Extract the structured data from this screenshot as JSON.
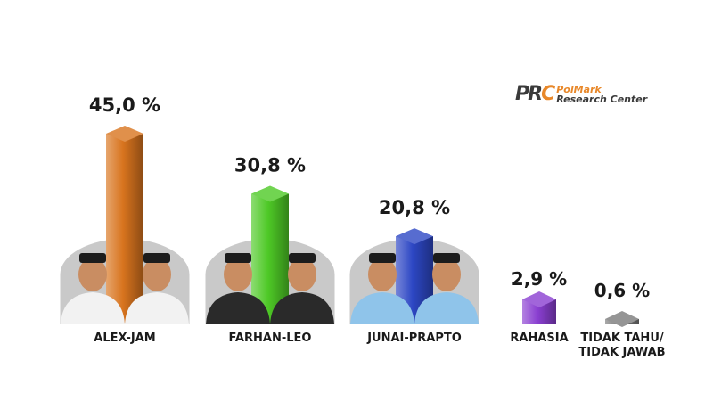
{
  "logo": {
    "mark_part1": "PR",
    "mark_part2": "C",
    "line1": "PolMark",
    "line2": "Research Center"
  },
  "chart_data": {
    "type": "bar",
    "title": "",
    "xlabel": "",
    "ylabel": "",
    "ylim": [
      0,
      45
    ],
    "grid": false,
    "categories": [
      "ALEX-JAM",
      "FARHAN-LEO",
      "JUNAI-PRAPTO",
      "RAHASIA",
      "TIDAK TAHU/\nTIDAK JAWAB"
    ],
    "values": [
      45.0,
      30.8,
      20.8,
      2.9,
      0.6
    ],
    "labels": [
      "45,0 %",
      "30,8 %",
      "20,8 %",
      "2,9 %",
      "0,6 %"
    ],
    "colors": [
      "#d8741e",
      "#4ec926",
      "#2d47c4",
      "#8a3fd1",
      "#7a7a7a"
    ]
  }
}
